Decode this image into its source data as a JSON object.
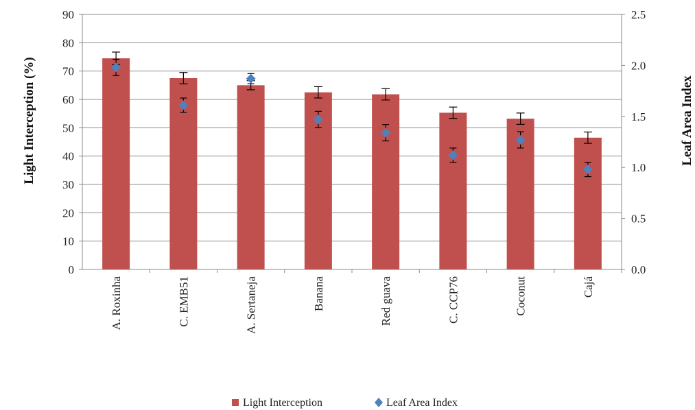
{
  "chart_data": {
    "type": "bar",
    "categories": [
      "A. Roxinha",
      "C. EMB51",
      "A. Sertaneja",
      "Banana",
      "Red guava",
      "C. CCP76",
      "Coconut",
      "Cajá"
    ],
    "series": [
      {
        "name": "Light Interception",
        "kind": "bar",
        "axis": "left",
        "color": "#C0504D",
        "values": [
          74.5,
          67.5,
          65.0,
          62.5,
          61.8,
          55.3,
          53.2,
          46.5
        ],
        "errors": [
          2.2,
          2.0,
          1.6,
          2.0,
          2.0,
          2.0,
          2.0,
          2.0
        ]
      },
      {
        "name": "Leaf Area Index",
        "kind": "marker",
        "marker": "diamond",
        "axis": "right",
        "color": "#4F81BD",
        "values": [
          1.98,
          1.61,
          1.87,
          1.47,
          1.34,
          1.12,
          1.27,
          0.98
        ],
        "errors": [
          0.08,
          0.07,
          0.05,
          0.08,
          0.08,
          0.07,
          0.08,
          0.07
        ]
      }
    ],
    "ylabel": "Light Interception (%)",
    "y2label": "Leaf Area Index",
    "ylim": [
      0,
      90
    ],
    "y2lim": [
      0,
      2.5
    ],
    "yticks": [
      "0",
      "10",
      "20",
      "30",
      "40",
      "50",
      "60",
      "70",
      "80",
      "90"
    ],
    "y2ticks": [
      "0.0",
      "0.5",
      "1.0",
      "1.5",
      "2.0",
      "2.5"
    ],
    "grid": true,
    "legend_position": "bottom",
    "colors": {
      "bar": "#C0504D",
      "marker": "#4F81BD",
      "grid": "#8c8c8c",
      "axis": "#888888"
    }
  }
}
